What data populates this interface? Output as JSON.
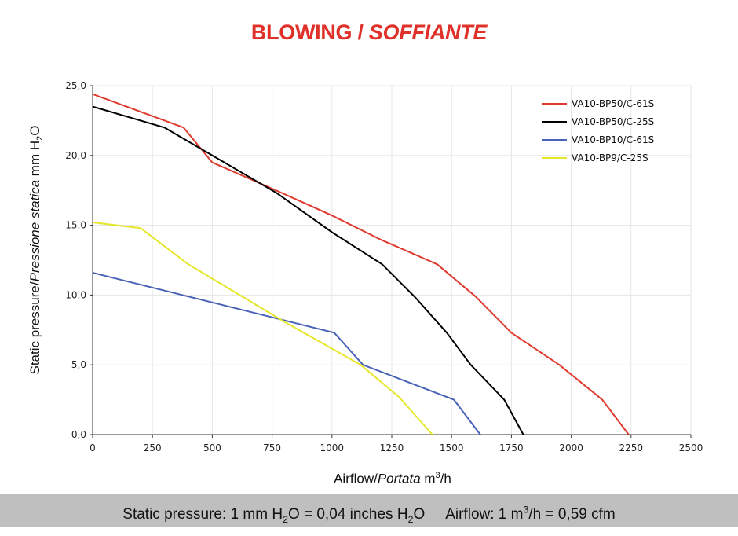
{
  "title": {
    "main": "BLOWING / ",
    "italic": "SOFFIANTE",
    "color": "#e0302a"
  },
  "yaxis_label": {
    "part1": "Static pressure",
    "sep": "/",
    "part2_italic": "Pressione statica",
    "unit_pre": " mm  H",
    "unit_sub": "2",
    "unit_post": "O"
  },
  "xaxis_label": {
    "part1": "Airflow",
    "sep": "/",
    "part2_italic": "Portata",
    "unit_pre": "  m",
    "unit_sup": "3",
    "unit_post": "/h"
  },
  "footer": {
    "pressure_pre": "Static pressure: 1 mm H",
    "pressure_sub": "2",
    "pressure_mid": "O = 0,04 inches H",
    "pressure_sub2": "2",
    "pressure_post": "O",
    "airflow_pre": "Airflow: 1 m",
    "airflow_sup": "3",
    "airflow_post": "/h = 0,59 cfm"
  },
  "chart_data": {
    "type": "line",
    "xlim": [
      0,
      2500
    ],
    "ylim": [
      0,
      25
    ],
    "xticks": [
      0,
      250,
      500,
      750,
      1000,
      1250,
      1500,
      1750,
      2000,
      2250,
      2500
    ],
    "xtick_labels": [
      "0",
      "250",
      "500",
      "750",
      "1000",
      "1250",
      "1500",
      "1750",
      "2000",
      "2250",
      "2500"
    ],
    "yticks": [
      0,
      5,
      10,
      15,
      20,
      25
    ],
    "ytick_labels": [
      "0,0",
      "5,0",
      "10,0",
      "15,0",
      "20,0",
      "25,0"
    ],
    "grid": true,
    "legend_position": "top-right",
    "series": [
      {
        "name": "VA10-BP50/C-61S",
        "color": "#e03a2e",
        "x": [
          0,
          380,
          500,
          780,
          1000,
          1200,
          1440,
          1600,
          1750,
          1950,
          2130,
          2240
        ],
        "y": [
          24.4,
          22.0,
          19.5,
          17.4,
          15.7,
          14.0,
          12.2,
          9.9,
          7.3,
          5.0,
          2.5,
          0
        ]
      },
      {
        "name": "VA10-BP50/C-25S",
        "color": "#000000",
        "x": [
          0,
          300,
          500,
          770,
          1000,
          1210,
          1350,
          1480,
          1580,
          1720,
          1800
        ],
        "y": [
          23.5,
          22.0,
          20.0,
          17.3,
          14.5,
          12.2,
          9.8,
          7.3,
          5.0,
          2.5,
          0
        ]
      },
      {
        "name": "VA10-BP10/C-61S",
        "color": "#4a63b8",
        "x": [
          0,
          1010,
          1130,
          1510,
          1620
        ],
        "y": [
          11.6,
          7.3,
          5.0,
          2.5,
          0
        ]
      },
      {
        "name": "VA10-BP9/C-25S",
        "color": "#e6e62a",
        "x": [
          0,
          200,
          400,
          800,
          1120,
          1280,
          1420
        ],
        "y": [
          15.2,
          14.8,
          12.2,
          8.1,
          5.0,
          2.7,
          0
        ]
      }
    ]
  }
}
